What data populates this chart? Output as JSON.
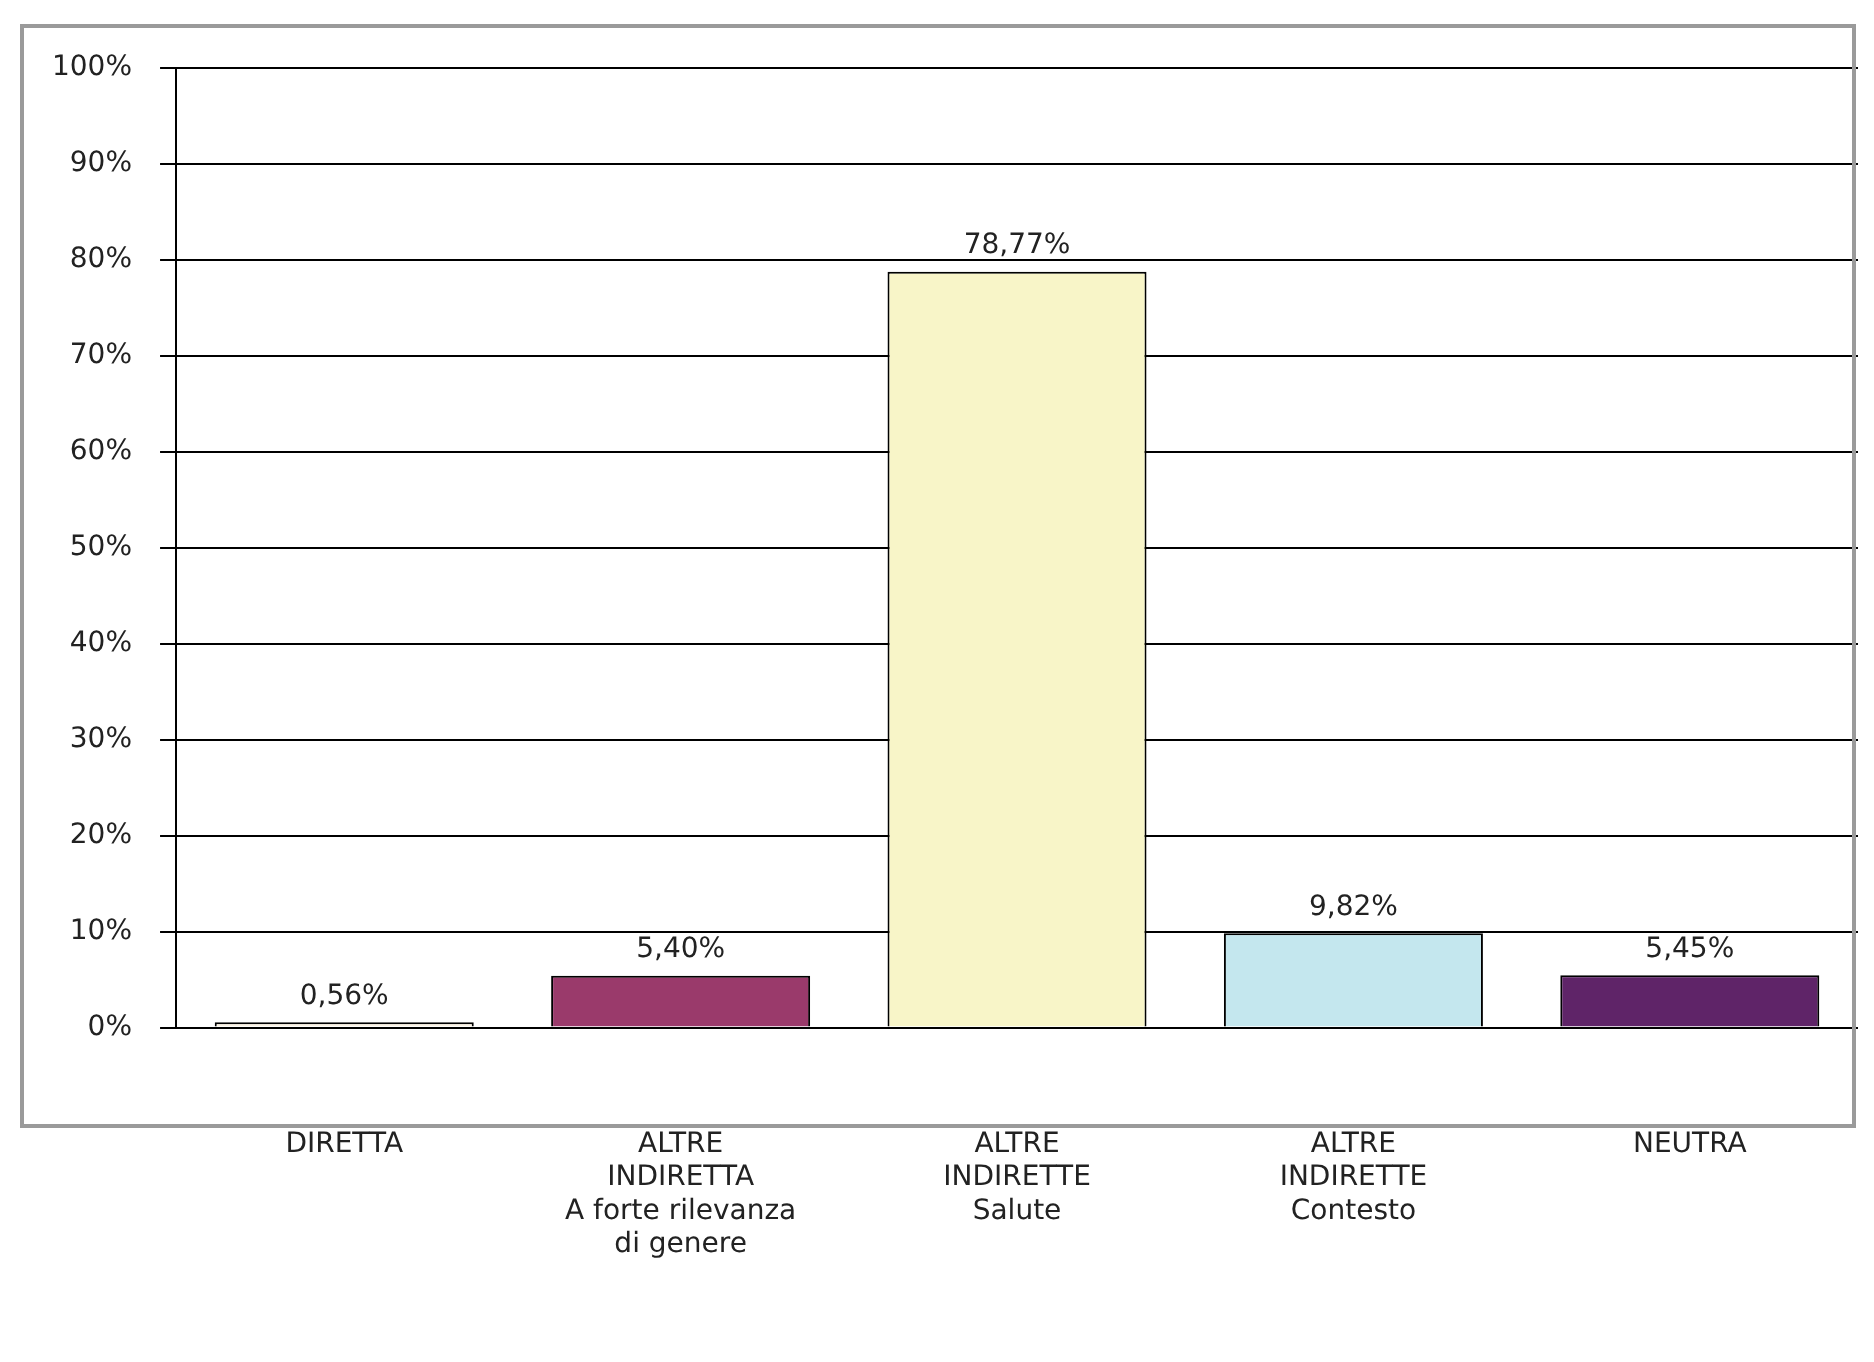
{
  "chart_data": {
    "type": "bar",
    "categories": [
      "DIRETTA",
      "ALTRE\nINDIRETTA\nA forte rilevanza\ndi genere",
      "ALTRE\nINDIRETTE\nSalute",
      "ALTRE\nINDIRETTE\nContesto",
      "NEUTRA"
    ],
    "values": [
      0.56,
      5.4,
      78.77,
      9.82,
      5.45
    ],
    "colors": [
      "#fbf3e4",
      "#9a3a6b",
      "#f8f5c8",
      "#c4e7ee",
      "#5f2468"
    ],
    "value_labels": [
      "0,56%",
      "5,40%",
      "78,77%",
      "9,82%",
      "5,45%"
    ],
    "ylim": [
      0,
      100
    ],
    "yticks": [
      {
        "value": 0,
        "label": "0%"
      },
      {
        "value": 10,
        "label": "10%"
      },
      {
        "value": 20,
        "label": "20%"
      },
      {
        "value": 30,
        "label": "30%"
      },
      {
        "value": 40,
        "label": "40%"
      },
      {
        "value": 50,
        "label": "50%"
      },
      {
        "value": 60,
        "label": "60%"
      },
      {
        "value": 70,
        "label": "70%"
      },
      {
        "value": 80,
        "label": "80%"
      },
      {
        "value": 90,
        "label": "90%"
      },
      {
        "value": 100,
        "label": "100%"
      }
    ],
    "grid": "y",
    "legend": false
  }
}
